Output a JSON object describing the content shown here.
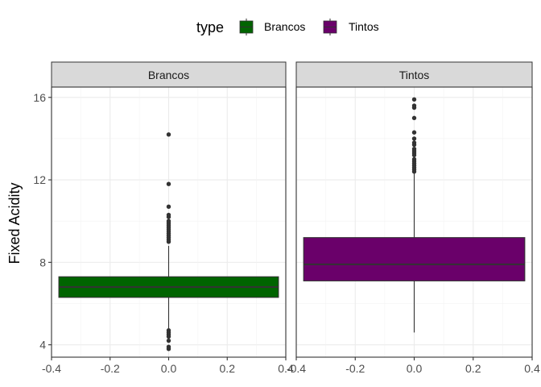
{
  "chart_data": {
    "type": "box",
    "ylabel": "Fixed Acidity",
    "xlim": [
      -0.4,
      0.4
    ],
    "ylim": [
      3.4,
      16.5
    ],
    "x_ticks": [
      "-0.4",
      "-0.2",
      "0.0",
      "0.2",
      "0.4"
    ],
    "y_ticks": [
      "4",
      "8",
      "12",
      "16"
    ],
    "legend": {
      "title": "type",
      "position": "top",
      "entries": [
        {
          "label": "Brancos",
          "color": "#006400"
        },
        {
          "label": "Tintos",
          "color": "#6a006a"
        }
      ]
    },
    "panels": [
      {
        "strip": "Brancos",
        "color": "#006400",
        "box": {
          "q1": 6.3,
          "median": 6.8,
          "q3": 7.3,
          "whisker_low": 4.8,
          "whisker_high": 8.8
        },
        "outliers": [
          14.2,
          11.8,
          10.7,
          10.3,
          10.2,
          10.0,
          9.9,
          9.8,
          9.7,
          9.6,
          9.5,
          9.4,
          9.3,
          9.2,
          9.1,
          9.0,
          4.7,
          4.6,
          4.5,
          4.4,
          4.2,
          3.9,
          3.8
        ]
      },
      {
        "strip": "Tintos",
        "color": "#6a006a",
        "box": {
          "q1": 7.1,
          "median": 7.9,
          "q3": 9.2,
          "whisker_low": 4.6,
          "whisker_high": 12.3
        },
        "outliers": [
          15.9,
          15.6,
          15.5,
          15.0,
          14.3,
          14.0,
          13.8,
          13.7,
          13.5,
          13.4,
          13.3,
          13.2,
          13.0,
          12.9,
          12.8,
          12.7,
          12.6,
          12.5,
          12.4
        ]
      }
    ]
  }
}
